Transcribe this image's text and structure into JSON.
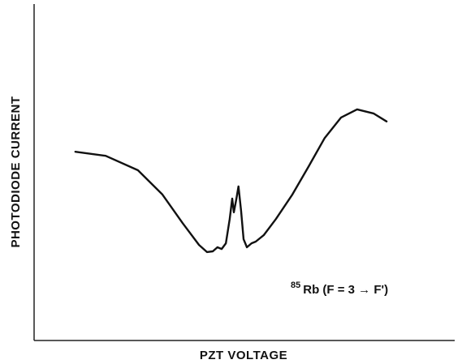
{
  "chart_data": {
    "type": "line",
    "x_label": "PZT VOLTAGE",
    "y_label": "PHOTODIODE CURRENT",
    "annotation": {
      "superscript": "85",
      "text": "Rb (F = 3 → F')"
    },
    "xlim": [
      0,
      100
    ],
    "ylim": [
      0,
      100
    ],
    "color": "#111111",
    "x": [
      9.8,
      17.0,
      24.7,
      30.5,
      35.3,
      39.2,
      41.1,
      42.5,
      43.6,
      44.6,
      45.6,
      46.5,
      47.1,
      47.5,
      48.1,
      48.6,
      49.2,
      49.8,
      50.6,
      51.7,
      52.7,
      54.6,
      57.5,
      61.4,
      65.3,
      69.1,
      73.0,
      76.8,
      80.7,
      83.8
    ],
    "values": [
      56.1,
      54.9,
      50.6,
      43.4,
      34.9,
      28.4,
      26.3,
      26.5,
      27.7,
      27.2,
      28.9,
      36.1,
      42.2,
      38.1,
      42.2,
      45.8,
      38.6,
      30.1,
      27.7,
      28.9,
      29.4,
      31.3,
      36.1,
      43.4,
      51.8,
      60.2,
      66.3,
      68.7,
      67.5,
      65.1
    ]
  }
}
